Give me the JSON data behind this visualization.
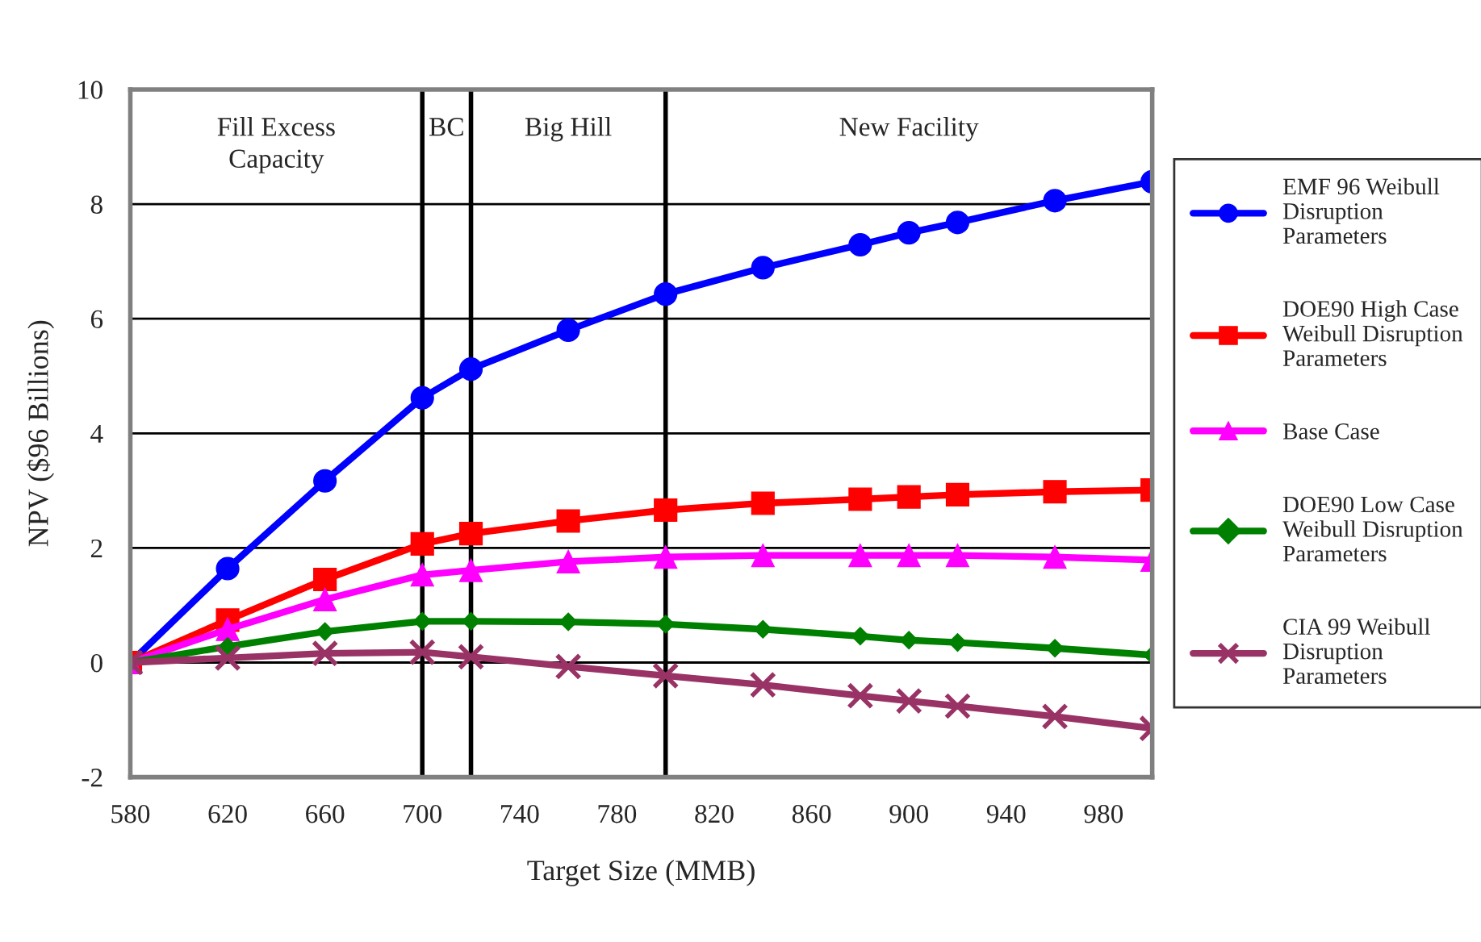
{
  "chart_data": {
    "type": "line",
    "xlabel": "Target Size (MMB)",
    "ylabel": "NPV ($96 Billions)",
    "x": [
      580,
      620,
      660,
      700,
      720,
      760,
      800,
      840,
      880,
      900,
      920,
      960,
      1000
    ],
    "series": [
      {
        "name": "EMF 96 Weibull Disruption Parameters",
        "color": "#0000ff",
        "marker": "circle",
        "values": [
          0,
          1.64,
          3.17,
          4.62,
          5.12,
          5.8,
          6.43,
          6.89,
          7.29,
          7.5,
          7.68,
          8.06,
          8.39
        ]
      },
      {
        "name": "DOE90 High Case Weibull Disruption Parameters",
        "color": "#ff0000",
        "marker": "square",
        "values": [
          0,
          0.74,
          1.45,
          2.07,
          2.25,
          2.47,
          2.66,
          2.78,
          2.85,
          2.89,
          2.93,
          2.98,
          3.01
        ]
      },
      {
        "name": "Base Case",
        "color": "#ff00ff",
        "marker": "triangle",
        "values": [
          0,
          0.58,
          1.1,
          1.53,
          1.61,
          1.76,
          1.84,
          1.87,
          1.87,
          1.87,
          1.87,
          1.84,
          1.79
        ]
      },
      {
        "name": "DOE90 Low Case Weibull Disruption Parameters",
        "color": "#008000",
        "marker": "diamond",
        "values": [
          0,
          0.28,
          0.54,
          0.72,
          0.72,
          0.71,
          0.67,
          0.58,
          0.46,
          0.39,
          0.35,
          0.25,
          0.13
        ]
      },
      {
        "name": "CIA 99 Weibull Disruption Parameters",
        "color": "#993366",
        "marker": "cross",
        "values": [
          0,
          0.08,
          0.16,
          0.18,
          0.1,
          -0.07,
          -0.23,
          -0.39,
          -0.58,
          -0.67,
          -0.76,
          -0.94,
          -1.15
        ]
      }
    ],
    "xlim": [
      580,
      1000
    ],
    "xticks": [
      580,
      620,
      660,
      700,
      740,
      780,
      820,
      860,
      900,
      940,
      980
    ],
    "ylim": [
      -2,
      10
    ],
    "yticks": [
      -2,
      0,
      2,
      4,
      6,
      8,
      10
    ],
    "grid": "y",
    "legend": "right",
    "line_style": "solid",
    "ref_lines": [
      {
        "axis": "x",
        "value": 700,
        "color": "#000000"
      },
      {
        "axis": "x",
        "value": 720,
        "color": "#000000"
      },
      {
        "axis": "x",
        "value": 800,
        "color": "#000000"
      }
    ],
    "annotations": [
      "Fill Excess\nCapacity",
      "BC",
      "Big Hill",
      "New Facility"
    ]
  }
}
